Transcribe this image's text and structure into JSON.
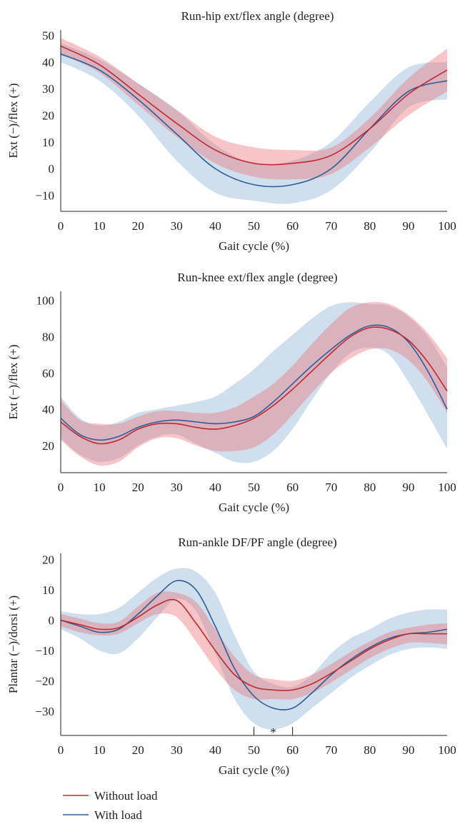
{
  "colors": {
    "without_load": "#c0282d",
    "with_load": "#2c5c9a",
    "without_load_band": "rgba(235,110,115,0.40)",
    "with_load_band": "rgba(140,178,215,0.42)"
  },
  "legend": {
    "without_load_label": "Without load",
    "with_load_label": "With load"
  },
  "chart_data": [
    {
      "type": "line",
      "title": "Run-hip ext/flex angle (degree)",
      "xlabel": "Gait cycle (%)",
      "ylabel": "Ext (−)/flex (+)",
      "xlim": [
        0,
        100
      ],
      "ylim": [
        -16,
        52
      ],
      "xticks": [
        0,
        10,
        20,
        30,
        40,
        50,
        60,
        70,
        80,
        90,
        100
      ],
      "yticks": [
        -10,
        0,
        10,
        20,
        30,
        40,
        50
      ],
      "ytick_labels": [
        "−10",
        "0",
        "10",
        "20",
        "30",
        "40",
        "50"
      ],
      "x": [
        0,
        10,
        20,
        30,
        40,
        50,
        60,
        70,
        80,
        90,
        100
      ],
      "series": [
        {
          "name": "Without load",
          "values": [
            46,
            39,
            28,
            17,
            7,
            2,
            2,
            5,
            15,
            28,
            37
          ],
          "lower": [
            43,
            36,
            24,
            12,
            2,
            -3,
            -4,
            -2,
            8,
            20,
            29
          ],
          "upper": [
            49,
            42,
            32,
            22,
            12,
            8,
            7,
            8,
            19,
            34,
            45
          ]
        },
        {
          "name": "With load",
          "values": [
            43,
            37,
            26,
            13,
            0,
            -6,
            -6,
            0,
            15,
            29,
            33
          ],
          "lower": [
            40,
            33,
            20,
            3,
            -9,
            -12,
            -13,
            -8,
            6,
            23,
            26
          ],
          "upper": [
            47,
            41,
            32,
            22,
            9,
            2,
            3,
            10,
            25,
            38,
            40
          ]
        }
      ]
    },
    {
      "type": "line",
      "title": "Run-knee ext/flex angle (degree)",
      "xlabel": "Gait cycle (%)",
      "ylabel": "Ext (−)/flex (+)",
      "xlim": [
        0,
        100
      ],
      "ylim": [
        5,
        105
      ],
      "xticks": [
        0,
        10,
        20,
        30,
        40,
        50,
        60,
        70,
        80,
        90,
        100
      ],
      "yticks": [
        20,
        40,
        60,
        80,
        100
      ],
      "ytick_labels": [
        "20",
        "40",
        "60",
        "80",
        "100"
      ],
      "x": [
        0,
        5,
        10,
        15,
        20,
        25,
        30,
        35,
        40,
        45,
        50,
        55,
        60,
        65,
        70,
        75,
        80,
        85,
        90,
        95,
        100
      ],
      "series": [
        {
          "name": "Without load",
          "values": [
            33,
            25,
            21,
            23,
            29,
            32,
            32,
            30,
            29,
            31,
            35,
            42,
            51,
            61,
            71,
            80,
            85,
            84,
            78,
            66,
            50
          ],
          "lower": [
            23,
            14,
            9,
            11,
            19,
            24,
            24,
            20,
            17,
            17,
            19,
            26,
            37,
            49,
            60,
            68,
            73,
            73,
            67,
            55,
            38
          ],
          "upper": [
            45,
            34,
            32,
            32,
            36,
            39,
            39,
            38,
            38,
            41,
            47,
            54,
            64,
            76,
            87,
            96,
            99,
            98,
            92,
            82,
            68
          ]
        },
        {
          "name": "With load",
          "values": [
            35,
            26,
            23,
            25,
            30,
            33,
            34,
            33,
            32,
            33,
            36,
            44,
            54,
            64,
            73,
            81,
            86,
            85,
            77,
            61,
            40
          ],
          "lower": [
            24,
            15,
            11,
            13,
            20,
            25,
            26,
            21,
            16,
            11,
            11,
            17,
            29,
            45,
            60,
            71,
            74,
            70,
            55,
            37,
            18
          ],
          "upper": [
            47,
            35,
            31,
            33,
            38,
            40,
            42,
            44,
            47,
            54,
            62,
            72,
            81,
            90,
            97,
            99,
            98,
            97,
            91,
            80,
            63
          ]
        }
      ]
    },
    {
      "type": "line",
      "title": "Run-ankle DF/PF angle (degree)",
      "xlabel": "Gait cycle (%)",
      "ylabel": "Plantar (−)/dorsi (+)",
      "xlim": [
        0,
        100
      ],
      "ylim": [
        -38,
        22
      ],
      "xticks": [
        0,
        10,
        20,
        30,
        40,
        50,
        60,
        70,
        80,
        90,
        100
      ],
      "yticks": [
        -30,
        -20,
        -10,
        0,
        10,
        20
      ],
      "ytick_labels": [
        "−30",
        "−20",
        "−10",
        "0",
        "10",
        "20"
      ],
      "x": [
        0,
        5,
        10,
        15,
        20,
        25,
        30,
        35,
        40,
        45,
        50,
        55,
        60,
        65,
        70,
        75,
        80,
        85,
        90,
        95,
        100
      ],
      "series": [
        {
          "name": "Without load",
          "values": [
            0,
            -1.5,
            -3,
            -2.5,
            1,
            5,
            6.5,
            -1,
            -10,
            -18,
            -22,
            -23,
            -23,
            -21,
            -17.5,
            -13.5,
            -9.5,
            -6.5,
            -4.5,
            -4.5,
            -4.5
          ],
          "lower": [
            -2,
            -4,
            -5,
            -4.5,
            -1,
            2,
            1,
            -7,
            -16,
            -23,
            -26,
            -26,
            -26,
            -24,
            -20.5,
            -16.5,
            -12.5,
            -9.5,
            -7.5,
            -7.5,
            -8
          ],
          "upper": [
            2,
            0.5,
            -1,
            -0.5,
            4.5,
            9,
            9,
            6,
            -3,
            -12,
            -18,
            -19.5,
            -20,
            -18,
            -14.5,
            -10.5,
            -7,
            -4,
            -2.5,
            -1.5,
            -1
          ]
        },
        {
          "name": "With load",
          "values": [
            0,
            -2,
            -4,
            -3,
            2,
            8,
            13,
            10,
            -2,
            -16,
            -25,
            -29,
            -29,
            -24,
            -18,
            -13,
            -9,
            -6,
            -4.5,
            -4,
            -3
          ],
          "lower": [
            -3,
            -6,
            -10,
            -11,
            -6,
            1,
            7,
            3,
            -11,
            -26,
            -34,
            -36,
            -34,
            -29,
            -24,
            -19,
            -15,
            -11.5,
            -9.5,
            -9,
            -9.5
          ],
          "upper": [
            3,
            2,
            2,
            4,
            9,
            14,
            17,
            16,
            9,
            -5,
            -17,
            -21,
            -22,
            -18,
            -11,
            -6,
            -3,
            0.5,
            2.5,
            3.5,
            3.5
          ]
        }
      ],
      "annotation": {
        "text": "*",
        "range": [
          50,
          60
        ]
      }
    }
  ]
}
